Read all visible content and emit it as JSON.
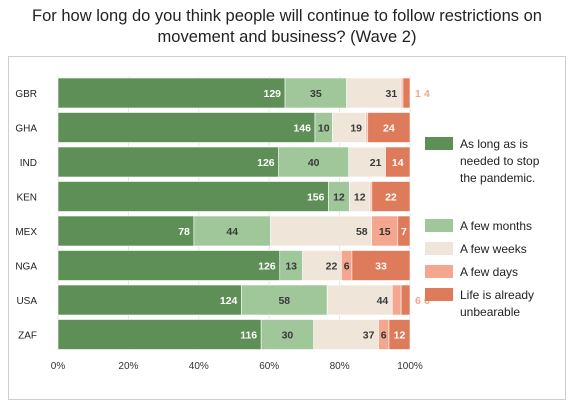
{
  "title_line1": "For how long do you think people will continue to follow restrictions on",
  "title_line2": "movement and business? (Wave 2)",
  "chart_data": {
    "type": "bar",
    "orientation": "horizontal",
    "stacked": "percent",
    "title": "For how long do you think people will continue to follow restrictions on movement and business? (Wave 2)",
    "categories": [
      "GBR",
      "GHA",
      "IND",
      "KEN",
      "MEX",
      "NGA",
      "USA",
      "ZAF"
    ],
    "series": [
      {
        "name": "As long as is needed to stop the pandemic.",
        "color": "#5e8f56",
        "label_color": "#ffffff",
        "values": [
          129,
          146,
          126,
          156,
          78,
          126,
          124,
          116
        ]
      },
      {
        "name": "A few months",
        "color": "#9fc79a",
        "label_color": "#3a3a3a",
        "values": [
          35,
          10,
          40,
          12,
          44,
          13,
          58,
          30
        ]
      },
      {
        "name": "A few weeks",
        "color": "#efe6d9",
        "label_color": "#3a3a3a",
        "values": [
          31,
          19,
          21,
          12,
          58,
          22,
          44,
          37
        ]
      },
      {
        "name": "A few days",
        "color": "#f4a68f",
        "label_color": "#333333",
        "values": [
          1,
          1,
          0,
          1,
          15,
          6,
          6,
          6
        ]
      },
      {
        "name": "Life is already unbearable",
        "color": "#dd7b5b",
        "label_color": "#ffffff",
        "values": [
          4,
          24,
          14,
          22,
          7,
          33,
          6,
          12
        ]
      }
    ],
    "outside_labels": {
      "GBR": [
        "1",
        "4"
      ],
      "USA": [
        "6",
        "6"
      ]
    },
    "x_ticks": [
      "0%",
      "20%",
      "40%",
      "60%",
      "80%",
      "100%"
    ],
    "xlim": [
      0,
      100
    ],
    "legend_position": "right",
    "legend": [
      [
        "As long as is",
        "needed to stop",
        "the pandemic."
      ],
      [
        "A few months"
      ],
      [
        "A few weeks"
      ],
      [
        "A few days"
      ],
      [
        "Life is already",
        "unbearable"
      ]
    ]
  }
}
